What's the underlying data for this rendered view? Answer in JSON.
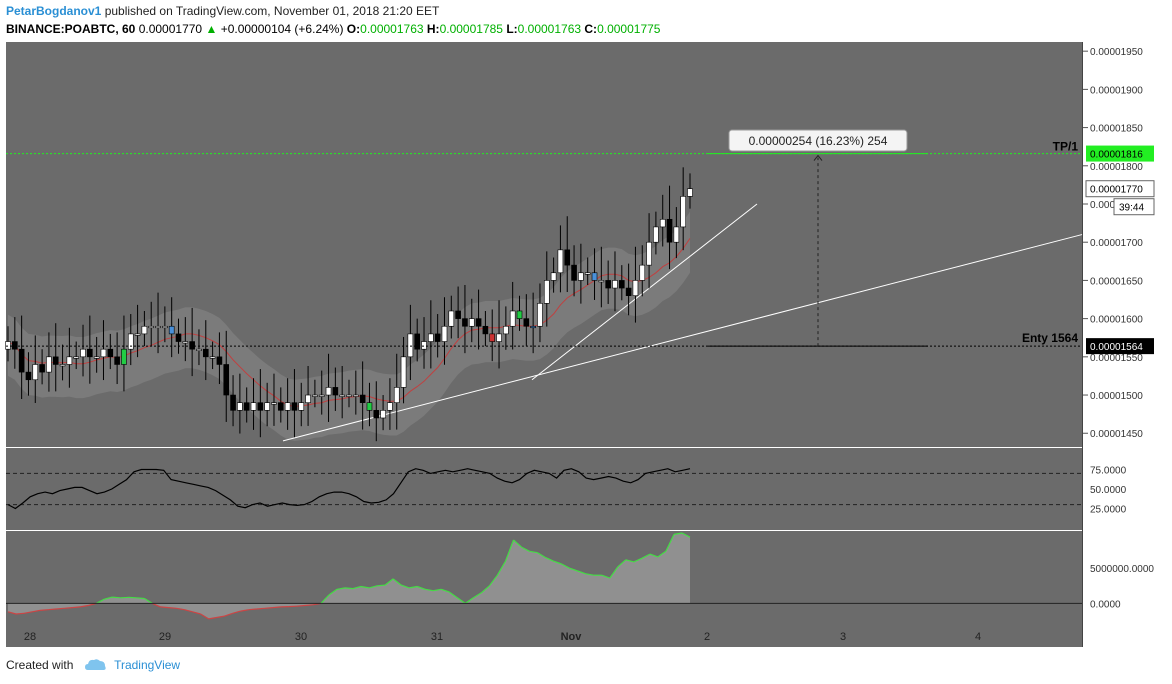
{
  "header": {
    "user": "PetarBogdanov1",
    "published_text": "published on TradingView.com, November 01, 2018 21:20 EET",
    "symbol": "BINANCE:POABTC, 60",
    "last": "0.00001770",
    "change": "+0.00000104 (+6.24%)",
    "o_label": "O:",
    "o_value": "0.00001763",
    "h_label": "H:",
    "h_value": "0.00001785",
    "l_label": "L:",
    "l_value": "0.00001763",
    "c_label": "C:",
    "c_value": "0.00001775"
  },
  "footer": {
    "created_with": "Created with",
    "brand": "TradingView"
  },
  "colors": {
    "background": "#6b6b6b",
    "up_candle": "#ffffff",
    "down_candle": "#000000",
    "tp_line": "#22ee22",
    "green_volume": "#44dd44",
    "red_volume": "#cc4444"
  },
  "chart_data": [
    {
      "type": "candlestick",
      "price_axis": {
        "ticks": [
          "0.00001950",
          "0.00001900",
          "0.00001850",
          "0.00001800",
          "0.00001750",
          "0.00001700",
          "0.00001650",
          "0.00001600",
          "0.00001550",
          "0.00001500",
          "0.00001450"
        ],
        "ylim": [
          1.432e-05,
          1.962e-05
        ]
      },
      "time_axis": {
        "ticks": [
          "28",
          "29",
          "30",
          "31",
          "Nov",
          "2",
          "3",
          "4"
        ]
      },
      "closes": [
        1.57e-05,
        1.56e-05,
        1.53e-05,
        1.52e-05,
        1.54e-05,
        1.53e-05,
        1.55e-05,
        1.54e-05,
        1.54e-05,
        1.55e-05,
        1.55e-05,
        1.56e-05,
        1.55e-05,
        1.55e-05,
        1.56e-05,
        1.55e-05,
        1.54e-05,
        1.56e-05,
        1.58e-05,
        1.58e-05,
        1.59e-05,
        1.59e-05,
        1.59e-05,
        1.59e-05,
        1.58e-05,
        1.57e-05,
        1.57e-05,
        1.56e-05,
        1.56e-05,
        1.55e-05,
        1.55e-05,
        1.54e-05,
        1.5e-05,
        1.48e-05,
        1.49e-05,
        1.48e-05,
        1.49e-05,
        1.48e-05,
        1.49e-05,
        1.49e-05,
        1.48e-05,
        1.49e-05,
        1.48e-05,
        1.49e-05,
        1.5e-05,
        1.5e-05,
        1.5e-05,
        1.51e-05,
        1.5e-05,
        1.5e-05,
        1.5e-05,
        1.5e-05,
        1.49e-05,
        1.48e-05,
        1.47e-05,
        1.48e-05,
        1.49e-05,
        1.51e-05,
        1.55e-05,
        1.58e-05,
        1.56e-05,
        1.57e-05,
        1.58e-05,
        1.57e-05,
        1.59e-05,
        1.61e-05,
        1.6e-05,
        1.59e-05,
        1.6e-05,
        1.59e-05,
        1.58e-05,
        1.57e-05,
        1.58e-05,
        1.59e-05,
        1.61e-05,
        1.6e-05,
        1.59e-05,
        1.59e-05,
        1.62e-05,
        1.65e-05,
        1.66e-05,
        1.69e-05,
        1.67e-05,
        1.65e-05,
        1.66e-05,
        1.66e-05,
        1.65e-05,
        1.65e-05,
        1.64e-05,
        1.65e-05,
        1.64e-05,
        1.63e-05,
        1.65e-05,
        1.67e-05,
        1.7e-05,
        1.72e-05,
        1.73e-05,
        1.7e-05,
        1.72e-05,
        1.76e-05,
        1.77e-05
      ],
      "annotations": [
        {
          "text": "0.00000254 (16.23%) 254"
        },
        {
          "text": "TP/1",
          "price_label": "0.00001816"
        },
        {
          "text": "Enty 1564",
          "price_label": "0.00001564"
        },
        {
          "last_price_label": "0.00001770",
          "countdown": "39:44"
        }
      ]
    },
    {
      "type": "line",
      "name": "oscillator",
      "ticks": [
        "75.0000",
        "50.0000",
        "25.0000"
      ],
      "ylim": [
        0,
        100
      ],
      "guides": [
        70,
        30
      ],
      "values": [
        30,
        25,
        32,
        40,
        44,
        46,
        44,
        48,
        50,
        52,
        52,
        48,
        44,
        46,
        50,
        56,
        62,
        72,
        75,
        75,
        75,
        74,
        62,
        60,
        58,
        56,
        54,
        52,
        48,
        42,
        36,
        28,
        26,
        30,
        32,
        28,
        30,
        32,
        30,
        29,
        30,
        34,
        40,
        44,
        46,
        46,
        44,
        40,
        34,
        32,
        33,
        36,
        44,
        58,
        72,
        76,
        74,
        70,
        72,
        74,
        72,
        74,
        76,
        74,
        72,
        70,
        64,
        60,
        58,
        62,
        70,
        74,
        72,
        70,
        64,
        74,
        76,
        72,
        64,
        62,
        64,
        66,
        64,
        60,
        58,
        62,
        70,
        72,
        74,
        76,
        72,
        74,
        76
      ]
    },
    {
      "type": "area",
      "name": "volume-flow",
      "ticks": [
        "5000000.0000",
        "0.0000"
      ],
      "ylim": [
        -2500000,
        10000000
      ],
      "values": [
        -1200000,
        -1500000,
        -1400000,
        -1200000,
        -1000000,
        -900000,
        -800000,
        -700000,
        -600000,
        -500000,
        -300000,
        0,
        600000,
        900000,
        800000,
        850000,
        800000,
        700000,
        0,
        -500000,
        -600000,
        -700000,
        -900000,
        -1200000,
        -1500000,
        -2200000,
        -2000000,
        -1800000,
        -1400000,
        -1100000,
        -900000,
        -800000,
        -700000,
        -600000,
        -500000,
        -450000,
        -400000,
        -300000,
        -200000,
        0,
        1200000,
        2000000,
        2200000,
        2100000,
        2400000,
        2200000,
        2500000,
        2600000,
        3500000,
        2600000,
        2200000,
        2400000,
        2000000,
        1800000,
        2000000,
        1600000,
        800000,
        0,
        800000,
        1500000,
        2500000,
        4000000,
        6000000,
        9000000,
        8000000,
        7400000,
        7200000,
        6500000,
        6000000,
        5600000,
        5000000,
        4600000,
        4200000,
        4000000,
        4000000,
        3600000,
        5200000,
        6200000,
        5900000,
        6400000,
        7000000,
        6600000,
        7400000,
        9800000,
        10000000,
        9400000
      ]
    }
  ]
}
